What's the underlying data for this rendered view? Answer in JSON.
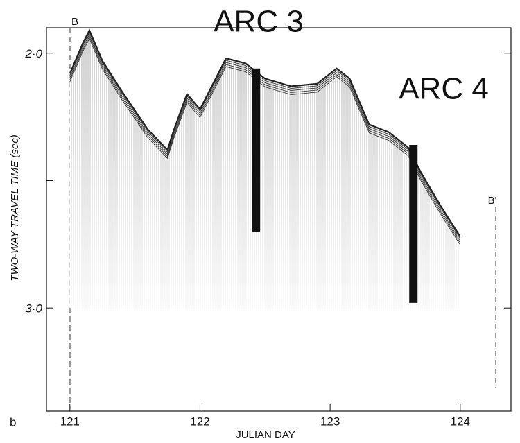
{
  "chart_data": {
    "type": "profile",
    "annotations": [
      "ARC 3",
      "ARC 4"
    ],
    "line_start_label": "B",
    "line_end_label": "B'",
    "panel_label": "b",
    "x_label": "JULIAN DAY",
    "y_label": "TWO-WAY TRAVEL TIME (sec)",
    "xlim": [
      120.82,
      124.39
    ],
    "xticks": [
      121,
      122,
      123,
      124
    ],
    "ylim": [
      1.9,
      3.405
    ],
    "yticks": [
      {
        "value": 2.0,
        "label": "2·0"
      },
      {
        "value": 3.0,
        "label": "3·0"
      }
    ],
    "yticks_minor": [
      2.5
    ],
    "y_inverted": true,
    "color": "#222",
    "x": [
      121.0,
      121.1,
      121.15,
      121.25,
      121.4,
      121.6,
      121.75,
      121.8,
      121.9,
      122.0,
      122.1,
      122.2,
      122.35,
      122.5,
      122.7,
      122.9,
      123.05,
      123.15,
      123.3,
      123.45,
      123.6,
      123.7,
      123.85,
      124.0
    ],
    "values": [
      2.08,
      1.96,
      1.91,
      2.03,
      2.15,
      2.3,
      2.38,
      2.3,
      2.16,
      2.22,
      2.12,
      2.02,
      2.04,
      2.1,
      2.13,
      2.12,
      2.06,
      2.1,
      2.28,
      2.31,
      2.37,
      2.47,
      2.6,
      2.72
    ],
    "markers": [
      {
        "x": 122.43,
        "top": 2.06,
        "bottom": 2.7
      },
      {
        "x": 123.64,
        "top": 2.36,
        "bottom": 2.98
      }
    ]
  }
}
